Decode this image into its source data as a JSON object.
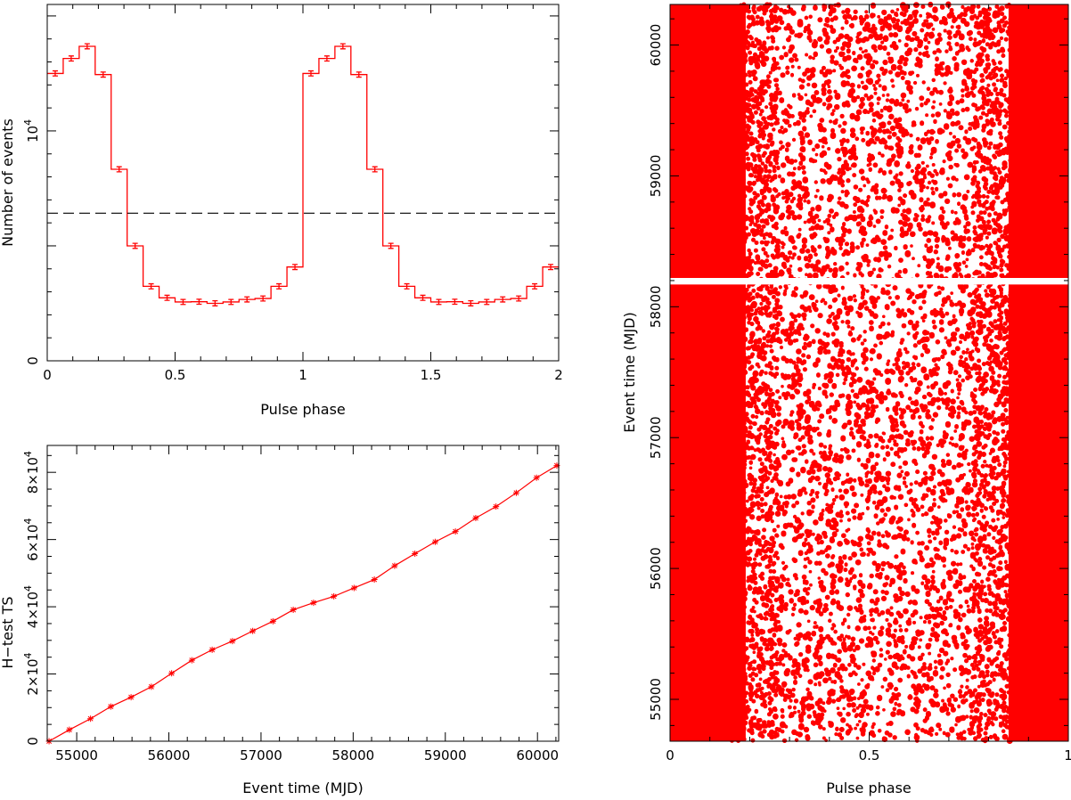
{
  "colors": {
    "series": "#ff0000",
    "axis": "#000000",
    "background": "#ffffff"
  },
  "chart_data": [
    {
      "type": "line",
      "style": "step histogram with error bars",
      "title": "",
      "xlabel": "Pulse phase",
      "ylabel": "Number of events",
      "xlim": [
        0,
        2
      ],
      "ylim": [
        0,
        15500
      ],
      "x_ticks": [
        "0",
        "0.5",
        "1",
        "1.5",
        "2"
      ],
      "y_ticks": [
        {
          "value": 0,
          "label": "0",
          "sup": ""
        },
        {
          "value": 10000,
          "label": "10",
          "sup": "4"
        }
      ],
      "bin_width": 0.0625,
      "bin_values": [
        12500,
        13150,
        13680,
        12450,
        8330,
        5000,
        3240,
        2740,
        2560,
        2570,
        2500,
        2560,
        2670,
        2710,
        3240,
        4080
      ],
      "error": 110,
      "reference_line": {
        "style": "dashed",
        "value": 6420
      },
      "grid": false,
      "legend": "none"
    },
    {
      "type": "line",
      "style": "line with star markers",
      "title": "",
      "xlabel": "Event time (MJD)",
      "ylabel": "H−test TS",
      "xlim": [
        54680,
        60230
      ],
      "ylim": [
        0,
        88000
      ],
      "x_ticks": [
        "55000",
        "56000",
        "57000",
        "58000",
        "59000",
        "60000"
      ],
      "y_ticks": [
        {
          "value": 0,
          "label": "0",
          "sup": ""
        },
        {
          "value": 20000,
          "label": "2×10",
          "sup": "4"
        },
        {
          "value": 40000,
          "label": "4×10",
          "sup": "4"
        },
        {
          "value": 60000,
          "label": "6×10",
          "sup": "4"
        },
        {
          "value": 80000,
          "label": "8×10",
          "sup": "4"
        }
      ],
      "x": [
        54700,
        54920,
        55150,
        55370,
        55590,
        55810,
        56030,
        56250,
        56470,
        56690,
        56910,
        57130,
        57350,
        57570,
        57790,
        58010,
        58230,
        58450,
        58670,
        58890,
        59110,
        59330,
        59550,
        59770,
        59990,
        60210
      ],
      "y": [
        0,
        3400,
        6700,
        10300,
        13100,
        16200,
        20200,
        24100,
        27200,
        29800,
        32800,
        35700,
        39100,
        41200,
        43100,
        45600,
        48100,
        52200,
        55800,
        59300,
        62400,
        66400,
        69800,
        73900,
        78400,
        82000
      ],
      "grid": false,
      "legend": "none"
    },
    {
      "type": "scatter",
      "style": "photon phase vs time, dense dots",
      "title": "",
      "xlabel": "Pulse phase",
      "ylabel": "Event time (MJD)",
      "xlim": [
        0,
        1
      ],
      "ylim": [
        54680,
        60310
      ],
      "x_ticks": [
        "0",
        "0.5",
        "1"
      ],
      "y_ticks": [
        "55000",
        "56000",
        "57000",
        "58000",
        "59000",
        "60000"
      ],
      "data_gap_mjd": [
        58170,
        58220
      ],
      "grid": false,
      "legend": "none"
    }
  ]
}
